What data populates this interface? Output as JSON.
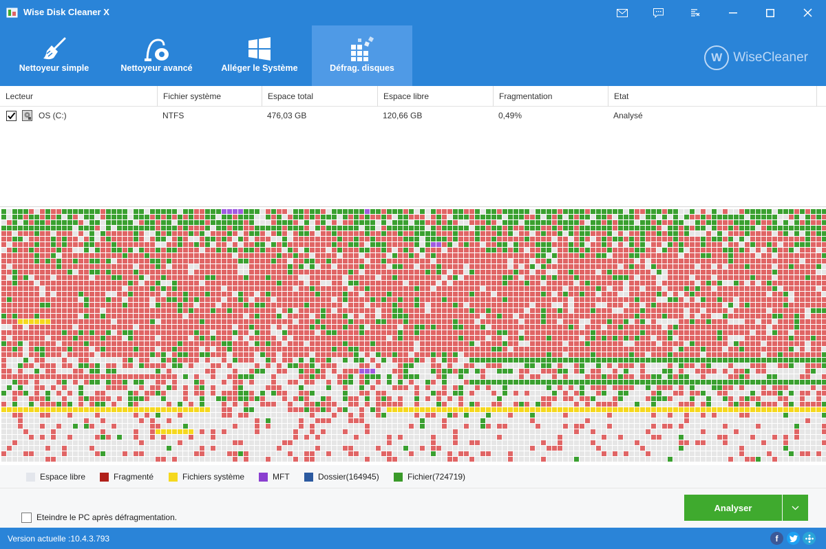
{
  "window": {
    "title": "Wise Disk Cleaner X"
  },
  "toolbar": {
    "tabs": [
      {
        "label": "Nettoyeur simple",
        "icon": "broom-icon"
      },
      {
        "label": "Nettoyeur avancé",
        "icon": "vacuum-icon"
      },
      {
        "label": "Alléger le Système",
        "icon": "windows-icon"
      },
      {
        "label": "Défrag. disques",
        "icon": "defrag-icon",
        "active": true
      }
    ],
    "brand": "WiseCleaner"
  },
  "table": {
    "headers": [
      "Lecteur",
      "Fichier système",
      "Espace total",
      "Espace libre",
      "Fragmentation",
      "Etat"
    ],
    "rows": [
      {
        "checked": true,
        "drive": "OS (C:)",
        "fs": "NTFS",
        "total": "476,03 GB",
        "free": "120,66 GB",
        "fragmentation": "0,49%",
        "state": "Analysé"
      }
    ]
  },
  "legend": [
    {
      "label": "Espace libre",
      "color": "#e3e6ec"
    },
    {
      "label": "Fragmenté",
      "color": "#b0201a"
    },
    {
      "label": "Fichiers système",
      "color": "#f5d81e"
    },
    {
      "label": "MFT",
      "color": "#8a3fd0"
    },
    {
      "label": "Dossier(164945)",
      "color": "#2c5aa0"
    },
    {
      "label": "Fichier(724719)",
      "color": "#3a9a2a"
    }
  ],
  "map_colors": {
    "free": "#e6e6e6",
    "fragmented": "#e06565",
    "system": "#f5d81e",
    "mft": "#a05ce0",
    "file": "#3aa030"
  },
  "options": {
    "shutdown_label": "Eteindre le PC après défragmentation.",
    "shutdown_checked": false
  },
  "actions": {
    "analyze_label": "Analyser"
  },
  "status": {
    "version": "Version actuelle :10.4.3.793"
  }
}
